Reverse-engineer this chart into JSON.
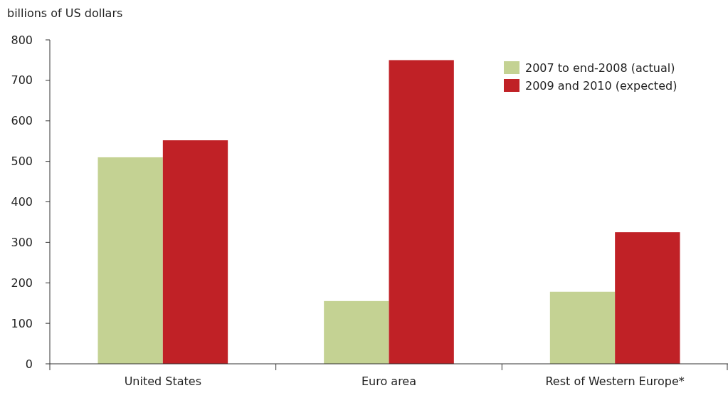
{
  "chart_data": {
    "type": "bar",
    "ylabel": "billions of US dollars",
    "categories": [
      "United States",
      "Euro area",
      "Rest of Western Europe*"
    ],
    "series": [
      {
        "name": "2007 to end-2008 (actual)",
        "color": "#c4d293",
        "values": [
          510,
          155,
          178
        ]
      },
      {
        "name": "2009 and 2010 (expected)",
        "color": "#c02126",
        "values": [
          552,
          750,
          325
        ]
      }
    ],
    "ylim": [
      0,
      800
    ],
    "yticks": [
      0,
      100,
      200,
      300,
      400,
      500,
      600,
      700,
      800
    ],
    "grid": false,
    "legend": "top right"
  }
}
